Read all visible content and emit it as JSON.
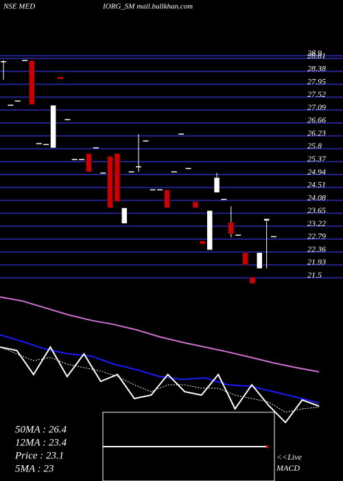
{
  "chart_data": {
    "type": "candlestick",
    "title": [
      "NSE MED",
      "IORG_SM mail.bullkhan.com"
    ],
    "ylim": [
      21.14,
      29.36
    ],
    "yticks": [
      28.9,
      28.81,
      28.38,
      27.95,
      27.52,
      27.09,
      26.66,
      26.23,
      25.8,
      25.37,
      24.94,
      24.51,
      24.08,
      23.65,
      23.22,
      22.79,
      22.36,
      21.93,
      21.5
    ],
    "grid": true,
    "grid_color": "#23238c",
    "up_color": "#ffffff",
    "down_color": "#cc0000",
    "candles": {
      "open": [
        28.7,
        27.25,
        27.39,
        28.74,
        28.74,
        25.97,
        25.94,
        25.83,
        28.2,
        26.77,
        25.44,
        25.44,
        25.64,
        25.83,
        24.99,
        25.55,
        25.64,
        23.31,
        25.03,
        25.2,
        26.06,
        24.43,
        24.43,
        24.43,
        25.03,
        26.29,
        25.14,
        24.04,
        22.73,
        22.43,
        24.34,
        24.11,
        23.35,
        22.92,
        22.34,
        21.52,
        21.81,
        23.4,
        22.87
      ],
      "high": [
        28.75,
        27.25,
        27.39,
        28.74,
        28.74,
        25.97,
        25.94,
        27.25,
        28.2,
        26.77,
        25.44,
        25.44,
        25.64,
        25.83,
        24.99,
        25.55,
        25.64,
        23.83,
        25.03,
        26.29,
        26.06,
        24.43,
        24.43,
        24.43,
        25.03,
        26.29,
        25.14,
        24.04,
        22.73,
        23.74,
        25.0,
        24.11,
        23.88,
        22.92,
        22.34,
        21.52,
        22.34,
        23.47,
        22.87
      ],
      "low": [
        28.1,
        27.25,
        27.39,
        28.74,
        27.27,
        25.97,
        25.94,
        25.83,
        28.12,
        26.77,
        25.44,
        25.44,
        25.03,
        25.83,
        24.99,
        23.83,
        24.04,
        23.31,
        25.03,
        25.03,
        26.06,
        24.43,
        24.43,
        23.83,
        25.03,
        26.29,
        25.14,
        23.83,
        22.62,
        22.43,
        24.34,
        24.11,
        22.85,
        22.92,
        21.93,
        21.31,
        21.81,
        21.81,
        22.87
      ],
      "close": [
        28.7,
        27.25,
        27.39,
        28.74,
        27.27,
        25.97,
        25.94,
        27.25,
        28.12,
        26.77,
        25.44,
        25.44,
        25.03,
        25.83,
        24.99,
        23.83,
        24.04,
        23.83,
        25.03,
        25.2,
        26.06,
        24.43,
        24.43,
        23.83,
        25.03,
        26.29,
        25.14,
        23.83,
        22.62,
        23.74,
        24.84,
        24.11,
        22.96,
        22.92,
        21.93,
        21.31,
        22.34,
        23.47,
        22.87
      ]
    },
    "ma_ylim": [
      15.9,
      34.4
    ],
    "ma_series": [
      {
        "label": "50MA : 26.4",
        "color": "#d070d0",
        "values": [
          33.6,
          33.2,
          32.54,
          31.88,
          31.35,
          30.95,
          30.43,
          29.77,
          29.24,
          28.78,
          28.31,
          27.79,
          27.26,
          26.8,
          26.4
        ]
      },
      {
        "label": "12MA : 23.4",
        "color": "#1a1aff",
        "values": [
          29.96,
          29.3,
          28.58,
          28.12,
          27.92,
          27.13,
          26.6,
          25.94,
          25.67,
          25.81,
          25.15,
          25.01,
          24.49,
          23.96,
          23.4
        ]
      },
      {
        "label": "Price   : 23.1",
        "color": "#ffffff",
        "values": [
          28.78,
          28.45,
          26.14,
          28.78,
          25.94,
          28.12,
          25.48,
          26.14,
          23.83,
          24.16,
          26.14,
          24.49,
          24.16,
          26.14,
          22.84,
          25.15,
          23.17,
          21.52,
          23.69,
          23.1
        ]
      },
      {
        "label": "5MA : 23",
        "color": "#ffffff",
        "dashed": true,
        "values": [
          28.78,
          28.12,
          27.46,
          27.79,
          27.13,
          26.8,
          26.47,
          25.94,
          25.15,
          24.49,
          25.15,
          25.15,
          24.82,
          24.82,
          24.16,
          23.83,
          23.5,
          22.51,
          22.84,
          23.0
        ]
      }
    ],
    "macd_label": [
      "<<Live",
      "MACD"
    ]
  }
}
